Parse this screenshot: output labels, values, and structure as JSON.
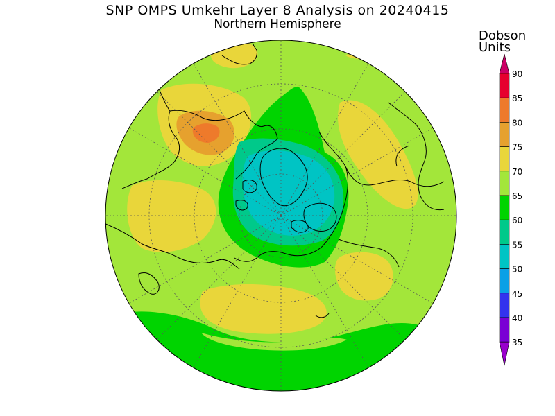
{
  "title": {
    "line1": "SNP OMPS Umkehr Layer 8 Analysis on 20240415",
    "line2": "Northern Hemisphere"
  },
  "legend": {
    "units_line1": "Dobson",
    "units_line2": "Units",
    "levels": [
      {
        "label": "90",
        "color": "#e6002e"
      },
      {
        "label": "85",
        "color": "#ee7a2b"
      },
      {
        "label": "80",
        "color": "#e6a12e"
      },
      {
        "label": "75",
        "color": "#e9d63a"
      },
      {
        "label": "70",
        "color": "#a3e63a"
      },
      {
        "label": "65",
        "color": "#00d400"
      },
      {
        "label": "60",
        "color": "#00c98a"
      },
      {
        "label": "55",
        "color": "#00c4c4"
      },
      {
        "label": "50",
        "color": "#0aa0e6"
      },
      {
        "label": "45",
        "color": "#3333ee"
      },
      {
        "label": "40",
        "color": "#7a00d4"
      },
      {
        "label": "35",
        "color": "#aa00cc"
      }
    ],
    "top_arrow_color": "#cc0066",
    "bottom_arrow_color": "#9900cc"
  },
  "map": {
    "projection": "north-polar-stereographic",
    "background_field_color": "#a3e63a",
    "grid": true
  }
}
